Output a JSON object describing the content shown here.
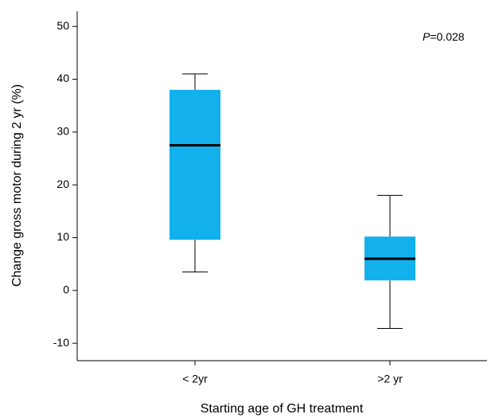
{
  "chart_data": {
    "type": "box",
    "xlabel": "Starting age of GH treatment",
    "ylabel": "Change gross motor during 2 yr (%)",
    "annotation": [
      "P",
      "=0.028"
    ],
    "categories": [
      "< 2yr",
      ">2 yr"
    ],
    "boxes": [
      {
        "low": 3.5,
        "q1": 9.6,
        "median": 27.5,
        "q3": 38,
        "high": 41
      },
      {
        "low": -7.2,
        "q1": 1.9,
        "median": 6,
        "q3": 10.2,
        "high": 18
      }
    ],
    "color": "#12b0ec",
    "ylim": [
      -13.3,
      52.9
    ],
    "yticks": [
      -10,
      0,
      10,
      20,
      30,
      40,
      50
    ]
  }
}
